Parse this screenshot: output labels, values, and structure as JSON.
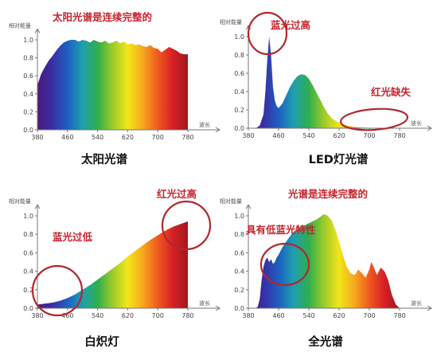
{
  "colors": {
    "annotation": "#c8232c",
    "circle": "#b0282e",
    "axis": "#777777"
  },
  "spectrum_gradient": [
    "#4b1a7a",
    "#3a2ea6",
    "#1e5fc0",
    "#1f9fb0",
    "#2fae4e",
    "#9ccb2a",
    "#f2e61a",
    "#f7a81c",
    "#ee5a1f",
    "#d71f26",
    "#9b1a1e"
  ],
  "chart_data": [
    {
      "type": "area",
      "id": "sunlight",
      "caption": "太阳光谱",
      "annotation": "太阳光谱是连续完整的",
      "ylabel": "相对能量",
      "xlabel": "波长",
      "xlim": [
        380,
        780
      ],
      "ylim": [
        0,
        1.1
      ],
      "xticks": [
        380,
        460,
        540,
        620,
        700,
        780
      ],
      "yticks": [
        0.0,
        0.2,
        0.4,
        0.6,
        0.8,
        1.0
      ],
      "ytick_labels": [
        "0.0",
        "0.2",
        "0.4",
        "0.6",
        "0.8",
        "1.0"
      ],
      "x": [
        380,
        385,
        390,
        395,
        400,
        410,
        420,
        430,
        440,
        450,
        460,
        470,
        480,
        490,
        500,
        510,
        520,
        530,
        540,
        550,
        560,
        570,
        580,
        590,
        600,
        610,
        620,
        630,
        640,
        650,
        660,
        670,
        680,
        690,
        700,
        710,
        720,
        730,
        740,
        750,
        760,
        770,
        780
      ],
      "y": [
        0.5,
        0.56,
        0.62,
        0.66,
        0.7,
        0.77,
        0.82,
        0.88,
        0.93,
        0.97,
        0.99,
        1.0,
        1.0,
        0.98,
        1.0,
        0.99,
        0.97,
        1.0,
        0.98,
        0.97,
        0.99,
        0.96,
        0.97,
        0.99,
        0.96,
        0.98,
        0.95,
        0.96,
        0.94,
        0.95,
        0.93,
        0.92,
        0.94,
        0.91,
        0.9,
        0.86,
        0.89,
        0.92,
        0.9,
        0.88,
        0.85,
        0.84,
        0.84
      ]
    },
    {
      "type": "area",
      "id": "led",
      "caption": "LED灯光谱",
      "annotations": [
        "蓝光过高",
        "红光缺失"
      ],
      "ylabel": "相对能量",
      "xlabel": "波长",
      "xlim": [
        380,
        780
      ],
      "ylim": [
        0,
        1.1
      ],
      "xticks": [
        380,
        460,
        540,
        620,
        700,
        780
      ],
      "yticks": [
        0.0,
        0.2,
        0.4,
        0.6,
        0.8,
        1.0
      ],
      "ytick_labels": [
        "0.0",
        "0.2",
        "0.4",
        "0.6",
        "0.8",
        "1.0"
      ],
      "x": [
        400,
        410,
        420,
        425,
        430,
        435,
        440,
        445,
        450,
        455,
        460,
        470,
        480,
        490,
        500,
        510,
        520,
        530,
        540,
        550,
        560,
        570,
        580,
        590,
        600,
        620,
        640,
        660,
        680,
        700,
        720,
        740,
        760
      ],
      "y": [
        0.0,
        0.03,
        0.15,
        0.4,
        0.75,
        1.0,
        0.8,
        0.45,
        0.3,
        0.24,
        0.22,
        0.27,
        0.36,
        0.45,
        0.52,
        0.57,
        0.59,
        0.58,
        0.54,
        0.47,
        0.39,
        0.31,
        0.23,
        0.16,
        0.11,
        0.06,
        0.03,
        0.015,
        0.008,
        0.004,
        0.002,
        0.001,
        0.0
      ]
    },
    {
      "type": "area",
      "id": "incandescent",
      "caption": "白炽灯",
      "annotations": [
        "红光过高",
        "蓝光过低"
      ],
      "ylabel": "相对能量",
      "xlabel": "波长",
      "xlim": [
        380,
        780
      ],
      "ylim": [
        0,
        1.1
      ],
      "xticks": [
        380,
        460,
        540,
        620,
        700,
        780
      ],
      "yticks": [
        0.0,
        0.2,
        0.4,
        0.6,
        0.8,
        1.0
      ],
      "ytick_labels": [
        "0.0",
        "0.2",
        "0.4",
        "0.6",
        "0.8",
        "1.0"
      ],
      "x": [
        380,
        400,
        420,
        440,
        460,
        480,
        500,
        520,
        540,
        560,
        580,
        600,
        620,
        640,
        660,
        680,
        700,
        720,
        740,
        760,
        780
      ],
      "y": [
        0.04,
        0.05,
        0.06,
        0.08,
        0.11,
        0.15,
        0.2,
        0.25,
        0.31,
        0.37,
        0.43,
        0.49,
        0.56,
        0.62,
        0.68,
        0.74,
        0.79,
        0.84,
        0.88,
        0.91,
        0.94
      ]
    },
    {
      "type": "area",
      "id": "full-spectrum",
      "caption": "全光谱",
      "annotations": [
        "光谱是连续完整的",
        "具有低蓝光特性"
      ],
      "ylabel": "相对能量",
      "xlabel": "波长",
      "xlim": [
        380,
        780
      ],
      "ylim": [
        0,
        1.1
      ],
      "xticks": [
        380,
        460,
        540,
        620,
        700,
        780
      ],
      "yticks": [
        0.0,
        0.2,
        0.4,
        0.6,
        0.8,
        1.0
      ],
      "ytick_labels": [
        "0.0",
        "0.2",
        "0.4",
        "0.6",
        "0.8",
        "1.0"
      ],
      "x": [
        400,
        405,
        410,
        415,
        420,
        425,
        430,
        435,
        440,
        445,
        450,
        455,
        460,
        470,
        480,
        490,
        500,
        510,
        520,
        530,
        540,
        550,
        560,
        570,
        580,
        590,
        600,
        610,
        620,
        630,
        640,
        650,
        660,
        665,
        670,
        680,
        690,
        700,
        705,
        710,
        720,
        730,
        740,
        750,
        760,
        770,
        780
      ],
      "y": [
        0.0,
        0.02,
        0.1,
        0.3,
        0.45,
        0.52,
        0.55,
        0.5,
        0.53,
        0.48,
        0.5,
        0.55,
        0.58,
        0.66,
        0.72,
        0.78,
        0.83,
        0.86,
        0.88,
        0.9,
        0.92,
        0.94,
        0.96,
        0.99,
        1.02,
        1.0,
        0.95,
        0.85,
        0.72,
        0.58,
        0.45,
        0.38,
        0.36,
        0.38,
        0.42,
        0.38,
        0.33,
        0.42,
        0.5,
        0.46,
        0.36,
        0.44,
        0.4,
        0.3,
        0.14,
        0.04,
        0.0
      ]
    }
  ]
}
